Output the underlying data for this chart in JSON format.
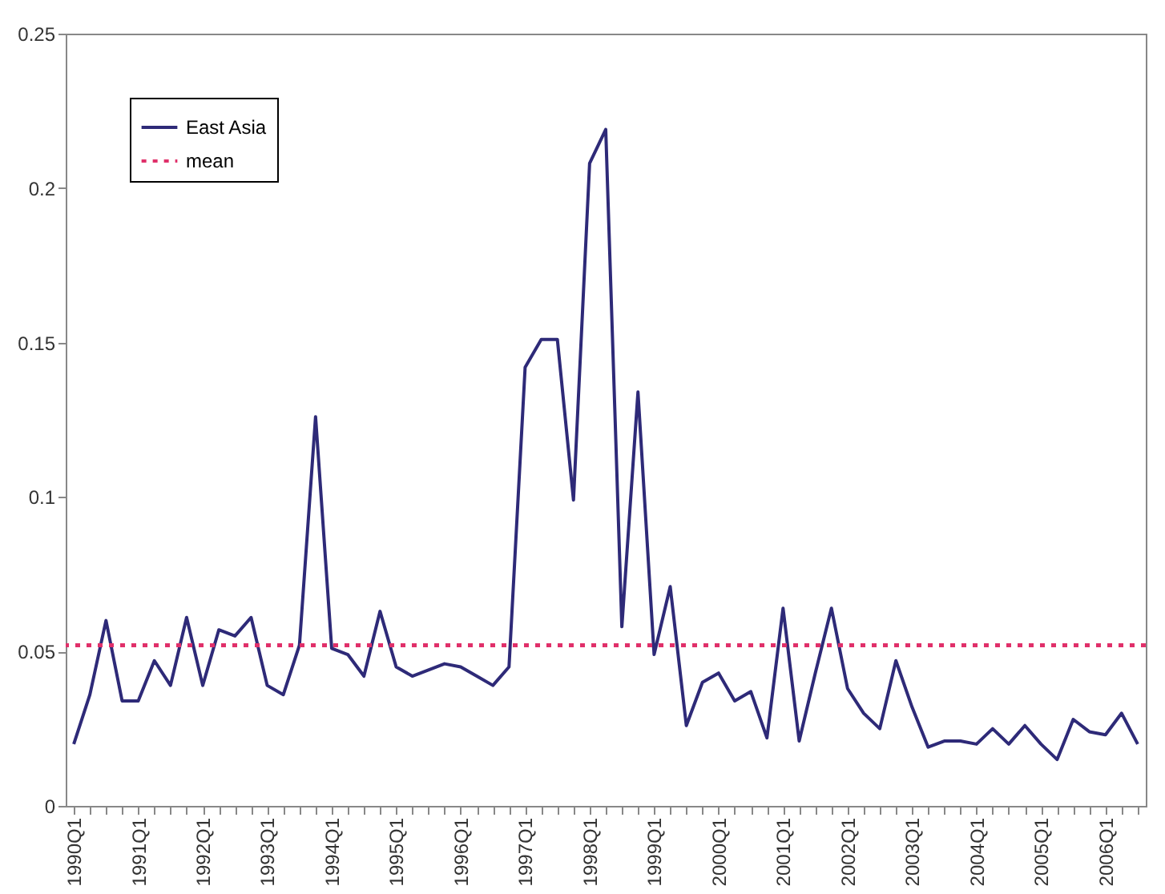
{
  "chart_data": {
    "type": "line",
    "categories": [
      "1990Q1",
      null,
      null,
      null,
      "1991Q1",
      null,
      null,
      null,
      "1992Q1",
      null,
      null,
      null,
      "1993Q1",
      null,
      null,
      null,
      "1994Q1",
      null,
      null,
      null,
      "1995Q1",
      null,
      null,
      null,
      "1996Q1",
      null,
      null,
      null,
      "1997Q1",
      null,
      null,
      null,
      "1998Q1",
      null,
      null,
      null,
      "1999Q1",
      null,
      null,
      null,
      "2000Q1",
      null,
      null,
      null,
      "2001Q1",
      null,
      null,
      null,
      "2002Q1",
      null,
      null,
      null,
      "2003Q1",
      null,
      null,
      null,
      "2004Q1",
      null,
      null,
      null,
      "2005Q1",
      null,
      null,
      null,
      "2006Q1",
      null,
      null
    ],
    "series": [
      {
        "name": "East Asia",
        "color": "#2e2a78",
        "values": [
          0.02,
          0.036,
          0.06,
          0.034,
          0.034,
          0.047,
          0.039,
          0.061,
          0.039,
          0.057,
          0.055,
          0.061,
          0.039,
          0.036,
          0.052,
          0.126,
          0.051,
          0.049,
          0.042,
          0.063,
          0.045,
          0.042,
          0.044,
          0.046,
          0.045,
          0.042,
          0.039,
          0.045,
          0.142,
          0.151,
          0.151,
          0.099,
          0.208,
          0.219,
          0.058,
          0.134,
          0.049,
          0.071,
          0.026,
          0.04,
          0.043,
          0.034,
          0.037,
          0.022,
          0.064,
          0.021,
          0.043,
          0.064,
          0.038,
          0.03,
          0.025,
          0.047,
          0.032,
          0.019,
          0.021,
          0.021,
          0.02,
          0.025,
          0.02,
          0.026,
          0.02,
          0.015,
          0.028,
          0.024,
          0.023,
          0.03,
          0.02
        ]
      }
    ],
    "ref_lines": [
      {
        "axis": "y",
        "value": 0.052,
        "label": "mean",
        "color": "#e0306a",
        "line_style": "dotted"
      }
    ],
    "ylim": [
      0,
      0.25
    ],
    "yticks": [
      0,
      0.05,
      0.1,
      0.15,
      0.2,
      0.25
    ],
    "legend": "top left",
    "marker": "none",
    "grid": false
  }
}
